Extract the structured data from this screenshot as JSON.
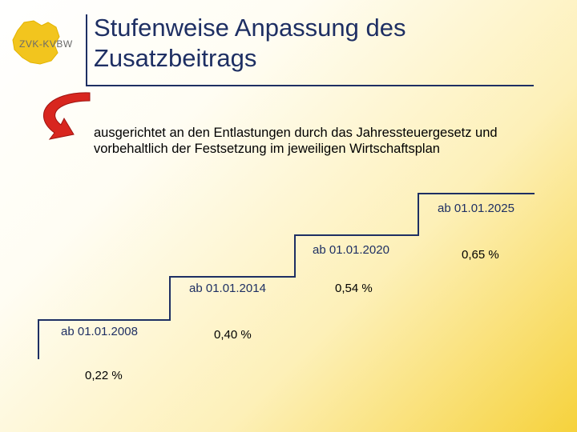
{
  "logo": {
    "text": "ZVK-KVBW"
  },
  "title": {
    "line1": "Stufenweise Anpassung des",
    "line2": "Zusatzbeitrags"
  },
  "subtitle": {
    "line1": "ausgerichtet an den Entlastungen durch das Jahressteuergesetz und",
    "line2": "vorbehaltlich der Festsetzung im jeweiligen Wirtschaftsplan"
  },
  "colors": {
    "title": "#1e2f63",
    "arrow": "#d8261f",
    "rule": "#1e2f63",
    "background_accent": "#f6d23c"
  },
  "steps": [
    {
      "date": "ab 01.01.2008",
      "rate": "0,22 %"
    },
    {
      "date": "ab 01.01.2014",
      "rate": "0,40 %"
    },
    {
      "date": "ab 01.01.2020",
      "rate": "0,54 %"
    },
    {
      "date": "ab 01.01.2025",
      "rate": "0,65 %"
    }
  ]
}
